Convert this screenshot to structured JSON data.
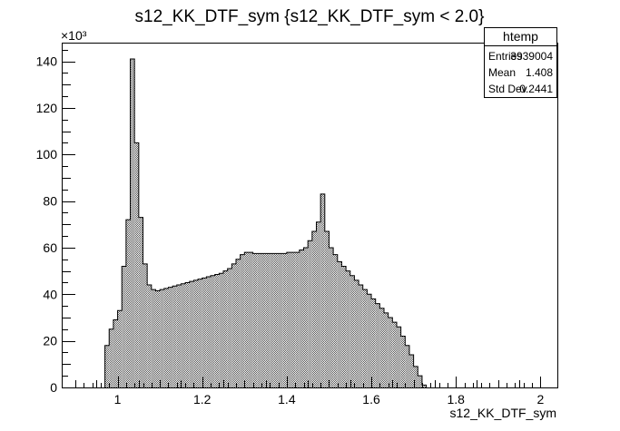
{
  "chart_data": {
    "type": "bar",
    "title": "s12_KK_DTF_sym {s12_KK_DTF_sym < 2.0}",
    "xlabel": "s12_KK_DTF_sym",
    "ylabel": "",
    "y_exponent": "×10³",
    "xlim": [
      0.87,
      2.04
    ],
    "ylim": [
      0,
      148
    ],
    "x_ticks": [
      1,
      1.2,
      1.4,
      1.6,
      1.8,
      2
    ],
    "x_tick_labels": [
      "1",
      "1.2",
      "1.4",
      "1.6",
      "1.8",
      "2"
    ],
    "y_ticks": [
      0,
      20,
      40,
      60,
      80,
      100,
      120,
      140
    ],
    "y_tick_labels": [
      "0",
      "20",
      "40",
      "60",
      "80",
      "100",
      "120",
      "140"
    ],
    "bin_start": 0.97,
    "bin_width": 0.01,
    "values": [
      18,
      25,
      29,
      33,
      52,
      72,
      141,
      105,
      73,
      53,
      44,
      42,
      41.5,
      42,
      42.5,
      43,
      43.5,
      44,
      44.5,
      45,
      45.5,
      46,
      46.5,
      47,
      47.5,
      48,
      48.5,
      49,
      50,
      51,
      53,
      55,
      57,
      58,
      58,
      57.5,
      57.5,
      57.5,
      57.5,
      57.5,
      57.5,
      57.5,
      57.5,
      58,
      58,
      58,
      59,
      60,
      63,
      67,
      71,
      83,
      67,
      60,
      57,
      54,
      52,
      50,
      48,
      46,
      44,
      42,
      40,
      38,
      36,
      34,
      32,
      30,
      28,
      26,
      22,
      18,
      14,
      9,
      5,
      1
    ],
    "grid": false,
    "legend": "none",
    "fill_color": "#888888",
    "stats": {
      "title": "htemp",
      "rows": [
        {
          "label": "Entries",
          "value": "3939004"
        },
        {
          "label": "Mean",
          "value": "1.408"
        },
        {
          "label": "Std Dev",
          "value": "0.2441"
        }
      ]
    }
  }
}
